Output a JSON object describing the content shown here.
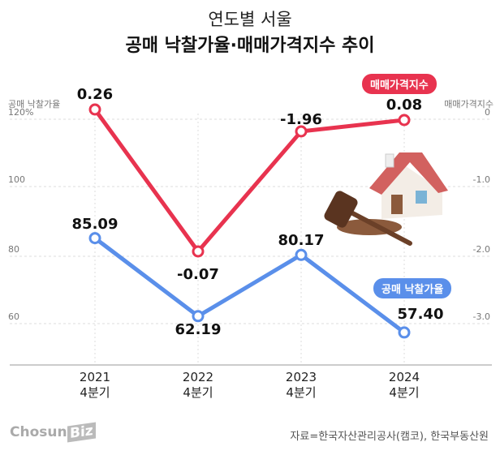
{
  "title_line1": "연도별 서울",
  "title_line2": "공매 낙찰가율·매매가격지수 추이",
  "left_axis_title": "공매 낙찰가율",
  "right_axis_title": "매매가격지수",
  "source": "자료=한국자산관리공사(캠코), 한국부동산원",
  "logo": {
    "text": "Chosun",
    "badge": "Biz"
  },
  "chart_data": {
    "type": "line",
    "categories": [
      [
        "2021",
        "4분기"
      ],
      [
        "2022",
        "4분기"
      ],
      [
        "2023",
        "4분기"
      ],
      [
        "2024",
        "4분기"
      ]
    ],
    "left_axis": {
      "ticks": [
        "120%",
        "100",
        "80",
        "60"
      ],
      "values": [
        120,
        100,
        80,
        60
      ],
      "ylim": [
        48,
        123
      ]
    },
    "right_axis": {
      "ticks": [
        "0",
        "-1.0",
        "-2.0",
        "-3.0"
      ],
      "values": [
        0,
        -1,
        -2,
        -3
      ]
    },
    "series": [
      {
        "name": "매매가격지수",
        "axis": "right",
        "color": "#e8334f",
        "values": [
          0.26,
          -0.07,
          -1.96,
          0.08
        ],
        "labels": [
          "0.26",
          "-0.07",
          "-1.96",
          "0.08"
        ]
      },
      {
        "name": "공매 낙찰가율",
        "axis": "left",
        "color": "#5a8fea",
        "values": [
          85.09,
          62.19,
          80.17,
          57.4
        ],
        "labels": [
          "85.09",
          "62.19",
          "80.17",
          "57.40"
        ]
      }
    ],
    "grid": true
  }
}
